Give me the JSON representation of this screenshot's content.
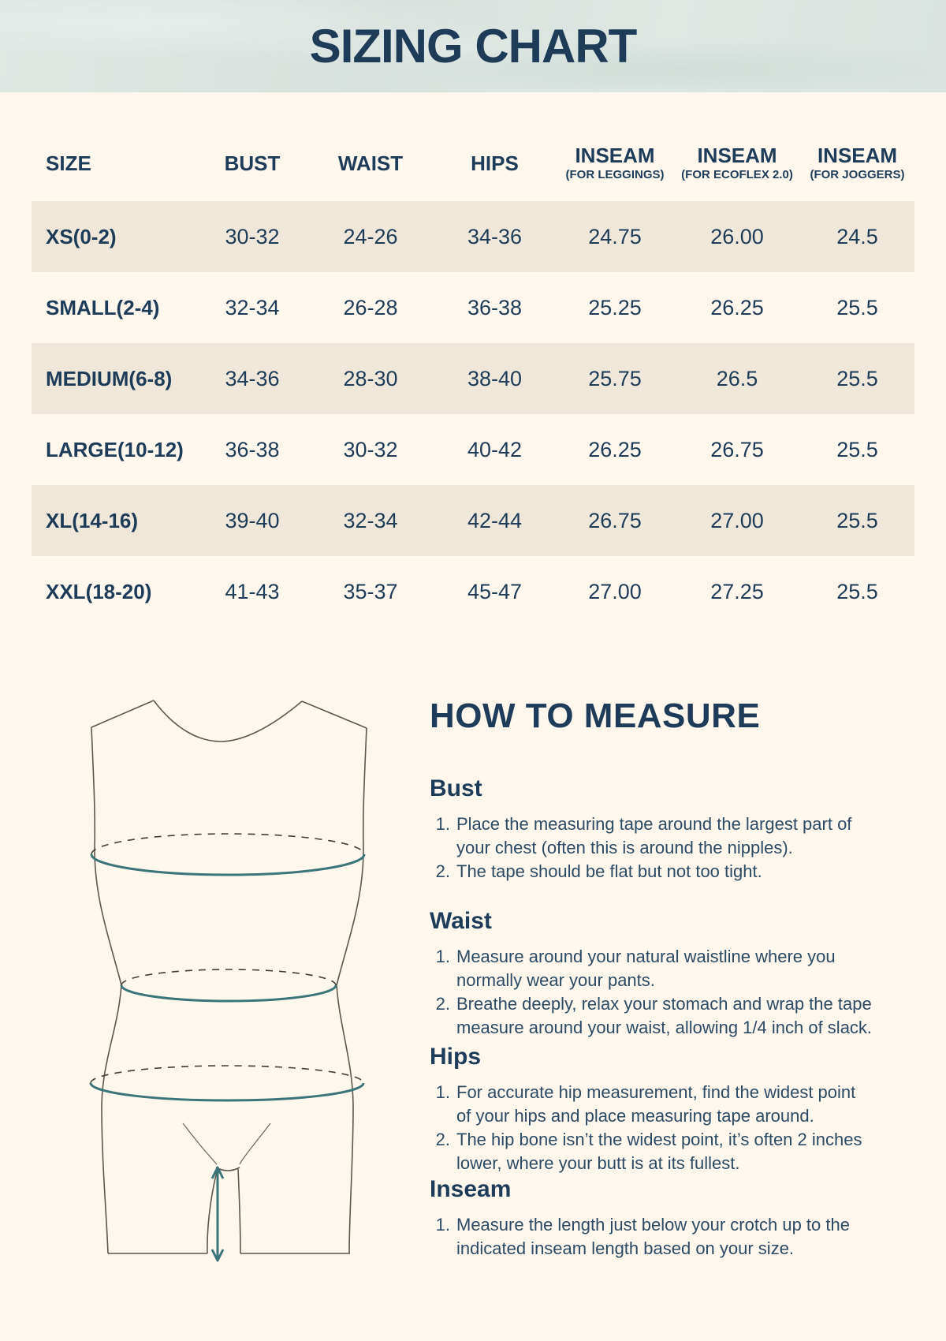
{
  "page": {
    "title": "SIZING CHART"
  },
  "table": {
    "columns": [
      {
        "label": "SIZE",
        "sub": ""
      },
      {
        "label": "BUST",
        "sub": ""
      },
      {
        "label": "WAIST",
        "sub": ""
      },
      {
        "label": "HIPS",
        "sub": ""
      },
      {
        "label": "INSEAM",
        "sub": "(FOR LEGGINGS)"
      },
      {
        "label": "INSEAM",
        "sub": "(FOR ECOFLEX 2.0)"
      },
      {
        "label": "INSEAM",
        "sub": "(FOR JOGGERS)"
      }
    ],
    "rows": [
      [
        "XS(0-2)",
        "30-32",
        "24-26",
        "34-36",
        "24.75",
        "26.00",
        "24.5"
      ],
      [
        "SMALL(2-4)",
        "32-34",
        "26-28",
        "36-38",
        "25.25",
        "26.25",
        "25.5"
      ],
      [
        "MEDIUM(6-8)",
        "34-36",
        "28-30",
        "38-40",
        "25.75",
        "26.5",
        "25.5"
      ],
      [
        "LARGE(10-12)",
        "36-38",
        "30-32",
        "40-42",
        "26.25",
        "26.75",
        "25.5"
      ],
      [
        "XL(14-16)",
        "39-40",
        "32-34",
        "42-44",
        "26.75",
        "27.00",
        "25.5"
      ],
      [
        "XXL(18-20)",
        "41-43",
        "35-37",
        "45-47",
        "27.00",
        "27.25",
        "25.5"
      ]
    ]
  },
  "how_to_measure": {
    "title": "HOW TO MEASURE",
    "sections": [
      {
        "heading": "Bust",
        "steps": [
          "Place the measuring tape around the largest part of your chest (often this is around the nipples).",
          "The tape should be flat but not too tight."
        ]
      },
      {
        "heading": "Waist",
        "steps": [
          "Measure around your natural waistline where you normally wear your pants.",
          "Breathe deeply, relax your stomach and wrap the tape measure around your waist, allowing 1/4 inch of slack."
        ]
      },
      {
        "heading": "Hips",
        "steps": [
          "For accurate hip measurement, find the widest point of your hips and place measuring tape around.",
          "The hip bone isn’t the widest point, it’s often 2 inches lower, where your butt is at its fullest."
        ]
      },
      {
        "heading": "Inseam",
        "steps": [
          "Measure the length just below your crotch up to the indicated inseam length based on your size."
        ]
      }
    ]
  },
  "illustration": {
    "name": "body-measurement-diagram"
  },
  "colors": {
    "banner_bg": "#dce4e0",
    "page_bg": "#fdf7ee",
    "row_shade": "#efe7da",
    "heading_navy": "#1e3c58",
    "body_navy": "#2c4a63",
    "teal_accent": "#3c7579",
    "figure_outline": "#5d574c"
  }
}
